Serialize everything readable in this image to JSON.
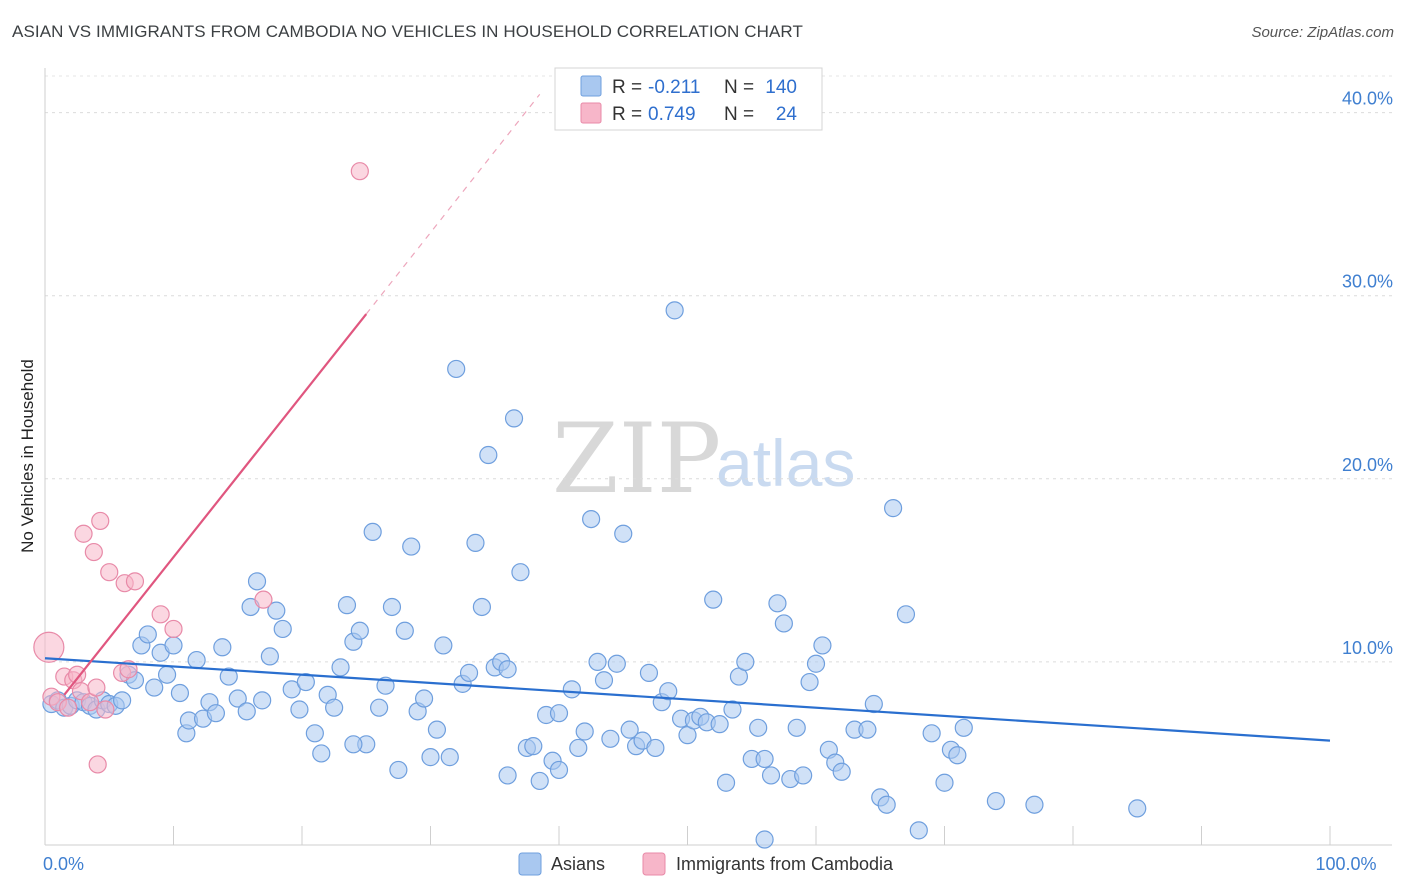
{
  "header": {
    "title": "ASIAN VS IMMIGRANTS FROM CAMBODIA NO VEHICLES IN HOUSEHOLD CORRELATION CHART",
    "source": "Source: ZipAtlas.com"
  },
  "watermark": {
    "zip": "ZIP",
    "atlas": "atlas"
  },
  "legend": {
    "r_label": "R =",
    "n_label": "N =",
    "rows": [
      {
        "r": "-0.211",
        "n": "140",
        "color": "#a9c8f0"
      },
      {
        "r": "0.749",
        "n": "24",
        "color": "#f7b6c9"
      }
    ]
  },
  "chart_data": {
    "type": "scatter",
    "title": "ASIAN VS IMMIGRANTS FROM CAMBODIA NO VEHICLES IN HOUSEHOLD CORRELATION CHART",
    "xlabel": "",
    "ylabel": "No Vehicles in Household",
    "xlim": [
      0,
      100
    ],
    "ylim": [
      0,
      42
    ],
    "x_ticks": [
      {
        "value": 0,
        "label": "0.0%"
      },
      {
        "value": 100,
        "label": "100.0%"
      }
    ],
    "y_ticks": [
      {
        "value": 10,
        "label": "10.0%"
      },
      {
        "value": 20,
        "label": "20.0%"
      },
      {
        "value": 30,
        "label": "30.0%"
      },
      {
        "value": 40,
        "label": "40.0%"
      }
    ],
    "grid": true,
    "legend_position": "top-center",
    "series": [
      {
        "name": "Asians",
        "color": "#a9c8f0",
        "stroke": "#6f9fde",
        "trend": {
          "x": [
            0,
            100
          ],
          "y": [
            10.2,
            5.7
          ],
          "color": "#2a6fcf"
        },
        "points": [
          [
            0.5,
            7.7
          ],
          [
            1,
            7.9
          ],
          [
            1.5,
            7.5
          ],
          [
            2,
            7.6
          ],
          [
            2.5,
            7.9
          ],
          [
            3,
            7.8
          ],
          [
            3.5,
            7.6
          ],
          [
            4,
            7.4
          ],
          [
            4.5,
            7.9
          ],
          [
            5,
            7.7
          ],
          [
            5.5,
            7.6
          ],
          [
            6,
            7.9
          ],
          [
            6.5,
            9.3
          ],
          [
            7,
            9.0
          ],
          [
            7.5,
            10.9
          ],
          [
            8,
            11.5
          ],
          [
            8.5,
            8.6
          ],
          [
            9,
            10.5
          ],
          [
            9.5,
            9.3
          ],
          [
            10,
            10.9
          ],
          [
            10.5,
            8.3
          ],
          [
            11,
            6.1
          ],
          [
            11.2,
            6.8
          ],
          [
            11.8,
            10.1
          ],
          [
            12.3,
            6.9
          ],
          [
            12.8,
            7.8
          ],
          [
            13.3,
            7.2
          ],
          [
            13.8,
            10.8
          ],
          [
            14.3,
            9.2
          ],
          [
            15,
            8.0
          ],
          [
            15.7,
            7.3
          ],
          [
            16,
            13.0
          ],
          [
            16.5,
            14.4
          ],
          [
            16.9,
            7.9
          ],
          [
            17.5,
            10.3
          ],
          [
            18,
            12.8
          ],
          [
            18.5,
            11.8
          ],
          [
            19.2,
            8.5
          ],
          [
            19.8,
            7.4
          ],
          [
            20.3,
            8.9
          ],
          [
            21,
            6.1
          ],
          [
            21.5,
            5.0
          ],
          [
            22,
            8.2
          ],
          [
            22.5,
            7.5
          ],
          [
            23,
            9.7
          ],
          [
            23.5,
            13.1
          ],
          [
            24,
            11.1
          ],
          [
            24.5,
            11.7
          ],
          [
            25,
            5.5
          ],
          [
            25.5,
            17.1
          ],
          [
            26,
            7.5
          ],
          [
            26.5,
            8.7
          ],
          [
            27,
            13.0
          ],
          [
            27.5,
            4.1
          ],
          [
            28,
            11.7
          ],
          [
            28.5,
            16.3
          ],
          [
            29,
            7.3
          ],
          [
            29.5,
            8.0
          ],
          [
            30,
            4.8
          ],
          [
            30.5,
            6.3
          ],
          [
            31,
            10.9
          ],
          [
            31.5,
            4.8
          ],
          [
            32,
            26.0
          ],
          [
            32.5,
            8.8
          ],
          [
            33,
            9.4
          ],
          [
            33.5,
            16.5
          ],
          [
            34,
            13.0
          ],
          [
            34.5,
            21.3
          ],
          [
            35,
            9.7
          ],
          [
            35.5,
            10.0
          ],
          [
            36,
            3.8
          ],
          [
            36.5,
            23.3
          ],
          [
            37,
            14.9
          ],
          [
            37.5,
            5.3
          ],
          [
            38,
            5.4
          ],
          [
            38.5,
            3.5
          ],
          [
            39,
            7.1
          ],
          [
            39.5,
            4.6
          ],
          [
            40,
            7.2
          ],
          [
            41,
            8.5
          ],
          [
            41.5,
            5.3
          ],
          [
            42,
            6.2
          ],
          [
            42.5,
            17.8
          ],
          [
            43,
            10.0
          ],
          [
            43.5,
            9.0
          ],
          [
            44,
            5.8
          ],
          [
            44.5,
            9.9
          ],
          [
            45,
            17.0
          ],
          [
            45.5,
            6.3
          ],
          [
            46,
            5.4
          ],
          [
            46.5,
            5.7
          ],
          [
            47,
            9.4
          ],
          [
            47.5,
            5.3
          ],
          [
            48,
            7.8
          ],
          [
            48.5,
            8.4
          ],
          [
            49,
            29.2
          ],
          [
            49.5,
            6.9
          ],
          [
            50,
            6.0
          ],
          [
            50.5,
            6.8
          ],
          [
            51,
            7.0
          ],
          [
            51.5,
            6.7
          ],
          [
            52,
            13.4
          ],
          [
            52.5,
            6.6
          ],
          [
            53,
            3.4
          ],
          [
            53.5,
            7.4
          ],
          [
            54,
            9.2
          ],
          [
            54.5,
            10.0
          ],
          [
            55,
            4.7
          ],
          [
            55.5,
            6.4
          ],
          [
            56,
            4.7
          ],
          [
            56.5,
            3.8
          ],
          [
            57,
            13.2
          ],
          [
            57.5,
            12.1
          ],
          [
            58,
            3.6
          ],
          [
            58.5,
            6.4
          ],
          [
            59,
            3.8
          ],
          [
            59.5,
            8.9
          ],
          [
            60,
            9.9
          ],
          [
            60.5,
            10.9
          ],
          [
            61,
            5.2
          ],
          [
            61.5,
            4.5
          ],
          [
            62,
            4.0
          ],
          [
            63,
            6.3
          ],
          [
            64,
            6.3
          ],
          [
            64.5,
            7.7
          ],
          [
            65,
            2.6
          ],
          [
            65.5,
            2.2
          ],
          [
            66,
            18.4
          ],
          [
            67,
            12.6
          ],
          [
            68,
            0.8
          ],
          [
            69,
            6.1
          ],
          [
            70,
            3.4
          ],
          [
            70.5,
            5.2
          ],
          [
            71,
            4.9
          ],
          [
            71.5,
            6.4
          ],
          [
            74,
            2.4
          ],
          [
            77,
            2.2
          ],
          [
            85,
            2.0
          ],
          [
            56,
            0.3
          ],
          [
            36,
            9.6
          ],
          [
            24,
            5.5
          ],
          [
            40,
            4.1
          ]
        ]
      },
      {
        "name": "Immigrants from Cambodia",
        "color": "#f7b6c9",
        "stroke": "#e88aa8",
        "trend": {
          "x": [
            1.5,
            25
          ],
          "y": [
            8.2,
            29.0
          ],
          "color": "#e0567f"
        },
        "trend_dashed": {
          "x": [
            25,
            38.5
          ],
          "y": [
            29.0,
            41.0
          ]
        },
        "points": [
          [
            0.3,
            10.8
          ],
          [
            0.5,
            8.1
          ],
          [
            1,
            7.8
          ],
          [
            1.5,
            9.2
          ],
          [
            1.8,
            7.5
          ],
          [
            2.2,
            9.0
          ],
          [
            2.5,
            9.3
          ],
          [
            2.8,
            8.4
          ],
          [
            3,
            17.0
          ],
          [
            3.5,
            7.8
          ],
          [
            4,
            8.6
          ],
          [
            3.8,
            16.0
          ],
          [
            4.1,
            4.4
          ],
          [
            4.3,
            17.7
          ],
          [
            4.7,
            7.4
          ],
          [
            5,
            14.9
          ],
          [
            6,
            9.4
          ],
          [
            6.2,
            14.3
          ],
          [
            6.5,
            9.6
          ],
          [
            7,
            14.4
          ],
          [
            9,
            12.6
          ],
          [
            10,
            11.8
          ],
          [
            17,
            13.4
          ],
          [
            24.5,
            36.8
          ]
        ]
      }
    ]
  },
  "bottom_legend": [
    {
      "label": "Asians",
      "color": "#a9c8f0"
    },
    {
      "label": "Immigrants from Cambodia",
      "color": "#f7b6c9"
    }
  ]
}
